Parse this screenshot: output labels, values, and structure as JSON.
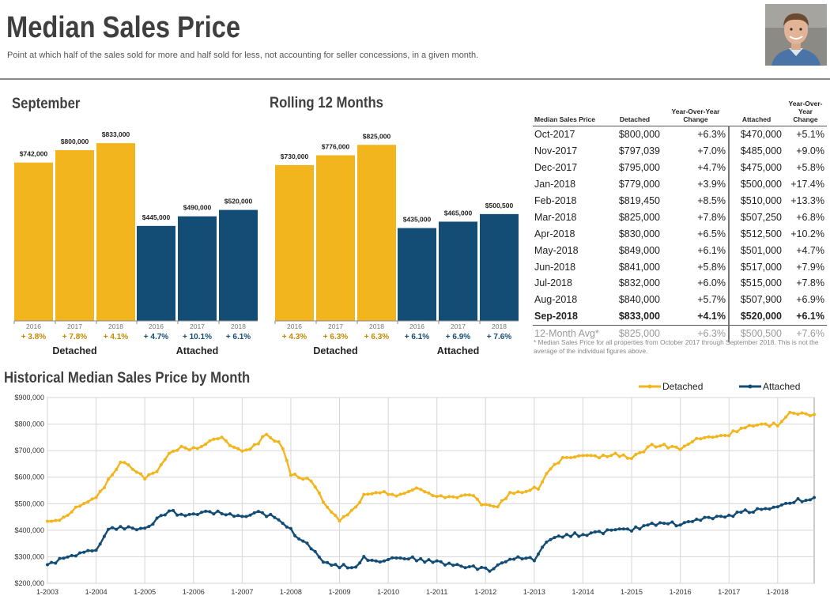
{
  "header": {
    "title": "Median Sales Price",
    "subtitle": "Point at which half of the sales sold for more and half sold for less, not accounting for seller concessions, in a given month."
  },
  "colors": {
    "detached": "#F2B51E",
    "attached": "#134C75",
    "grid": "#d6d6d6"
  },
  "sections": {
    "september": "September",
    "rolling": "Rolling 12 Months",
    "historical": "Historical Median Sales Price by Month"
  },
  "chart_data": [
    {
      "type": "bar",
      "title": "September",
      "groups": [
        "Detached",
        "Attached"
      ],
      "categories": [
        "2016",
        "2017",
        "2018"
      ],
      "series": [
        {
          "name": "Detached",
          "values": [
            742000,
            800000,
            833000
          ],
          "labels": [
            "$742,000",
            "$800,000",
            "$833,000"
          ],
          "changes": [
            "+ 3.8%",
            "+ 7.8%",
            "+ 4.1%"
          ]
        },
        {
          "name": "Attached",
          "values": [
            445000,
            490000,
            520000
          ],
          "labels": [
            "$445,000",
            "$490,000",
            "$520,000"
          ],
          "changes": [
            "+ 4.7%",
            "+ 10.1%",
            "+ 6.1%"
          ]
        }
      ]
    },
    {
      "type": "bar",
      "title": "Rolling 12 Months",
      "groups": [
        "Detached",
        "Attached"
      ],
      "categories": [
        "2016",
        "2017",
        "2018"
      ],
      "series": [
        {
          "name": "Detached",
          "values": [
            730000,
            776000,
            825000
          ],
          "labels": [
            "$730,000",
            "$776,000",
            "$825,000"
          ],
          "changes": [
            "+ 4.3%",
            "+ 6.3%",
            "+ 6.3%"
          ]
        },
        {
          "name": "Attached",
          "values": [
            435000,
            465000,
            500500
          ],
          "labels": [
            "$435,000",
            "$465,000",
            "$500,500"
          ],
          "changes": [
            "+ 6.1%",
            "+ 6.9%",
            "+ 7.6%"
          ]
        }
      ]
    },
    {
      "type": "line",
      "title": "Historical Median Sales Price by Month",
      "legend": [
        "Detached",
        "Attached"
      ],
      "x_tick_labels": [
        "1-2003",
        "1-2004",
        "1-2005",
        "1-2006",
        "1-2007",
        "1-2008",
        "1-2009",
        "1-2010",
        "1-2011",
        "1-2012",
        "1-2013",
        "1-2014",
        "1-2015",
        "1-2016",
        "1-2017",
        "1-2018"
      ],
      "y_tick_labels": [
        "$900,000",
        "$800,000",
        "$700,000",
        "$600,000",
        "$500,000",
        "$400,000",
        "$300,000",
        "$200,000"
      ],
      "ylim": [
        200000,
        900000
      ],
      "x_start": 2003.0,
      "x_end": 2018.75,
      "series": [
        {
          "name": "Detached",
          "anchors": [
            [
              2003.0,
              435000
            ],
            [
              2003.3,
              445000
            ],
            [
              2003.7,
              500000
            ],
            [
              2004.0,
              520000
            ],
            [
              2004.3,
              600000
            ],
            [
              2004.5,
              660000
            ],
            [
              2004.8,
              630000
            ],
            [
              2005.0,
              600000
            ],
            [
              2005.2,
              610000
            ],
            [
              2005.5,
              690000
            ],
            [
              2005.8,
              715000
            ],
            [
              2006.0,
              705000
            ],
            [
              2006.3,
              735000
            ],
            [
              2006.6,
              745000
            ],
            [
              2006.9,
              700000
            ],
            [
              2007.2,
              710000
            ],
            [
              2007.5,
              760000
            ],
            [
              2007.8,
              720000
            ],
            [
              2008.0,
              610000
            ],
            [
              2008.4,
              590000
            ],
            [
              2008.8,
              470000
            ],
            [
              2009.0,
              440000
            ],
            [
              2009.2,
              460000
            ],
            [
              2009.5,
              530000
            ],
            [
              2009.9,
              540000
            ],
            [
              2010.2,
              535000
            ],
            [
              2010.6,
              555000
            ],
            [
              2011.0,
              530000
            ],
            [
              2011.3,
              525000
            ],
            [
              2011.7,
              530000
            ],
            [
              2012.0,
              490000
            ],
            [
              2012.2,
              485000
            ],
            [
              2012.5,
              540000
            ],
            [
              2012.9,
              550000
            ],
            [
              2013.1,
              560000
            ],
            [
              2013.3,
              630000
            ],
            [
              2013.6,
              670000
            ],
            [
              2014.0,
              675000
            ],
            [
              2014.4,
              680000
            ],
            [
              2014.8,
              685000
            ],
            [
              2015.0,
              670000
            ],
            [
              2015.4,
              720000
            ],
            [
              2015.8,
              715000
            ],
            [
              2016.0,
              705000
            ],
            [
              2016.3,
              740000
            ],
            [
              2016.6,
              750000
            ],
            [
              2017.0,
              760000
            ],
            [
              2017.3,
              790000
            ],
            [
              2017.7,
              795000
            ],
            [
              2017.9,
              800000
            ],
            [
              2018.0,
              790000
            ],
            [
              2018.2,
              840000
            ],
            [
              2018.5,
              845000
            ],
            [
              2018.75,
              833000
            ]
          ]
        },
        {
          "name": "Attached",
          "anchors": [
            [
              2003.0,
              270000
            ],
            [
              2003.2,
              285000
            ],
            [
              2003.5,
              305000
            ],
            [
              2003.8,
              315000
            ],
            [
              2004.0,
              330000
            ],
            [
              2004.3,
              410000
            ],
            [
              2004.6,
              410000
            ],
            [
              2004.8,
              400000
            ],
            [
              2005.0,
              405000
            ],
            [
              2005.3,
              450000
            ],
            [
              2005.5,
              475000
            ],
            [
              2005.8,
              450000
            ],
            [
              2006.0,
              455000
            ],
            [
              2006.3,
              470000
            ],
            [
              2006.6,
              465000
            ],
            [
              2006.9,
              455000
            ],
            [
              2007.1,
              450000
            ],
            [
              2007.3,
              465000
            ],
            [
              2007.6,
              455000
            ],
            [
              2007.9,
              420000
            ],
            [
              2008.1,
              380000
            ],
            [
              2008.4,
              340000
            ],
            [
              2008.7,
              280000
            ],
            [
              2009.0,
              265000
            ],
            [
              2009.3,
              260000
            ],
            [
              2009.5,
              295000
            ],
            [
              2009.9,
              285000
            ],
            [
              2010.2,
              300000
            ],
            [
              2010.6,
              290000
            ],
            [
              2011.0,
              280000
            ],
            [
              2011.3,
              270000
            ],
            [
              2011.6,
              265000
            ],
            [
              2011.9,
              255000
            ],
            [
              2012.1,
              250000
            ],
            [
              2012.4,
              285000
            ],
            [
              2012.7,
              295000
            ],
            [
              2013.0,
              290000
            ],
            [
              2013.3,
              370000
            ],
            [
              2013.6,
              380000
            ],
            [
              2014.0,
              385000
            ],
            [
              2014.3,
              390000
            ],
            [
              2014.6,
              400000
            ],
            [
              2015.0,
              400000
            ],
            [
              2015.3,
              420000
            ],
            [
              2015.7,
              430000
            ],
            [
              2016.0,
              420000
            ],
            [
              2016.3,
              440000
            ],
            [
              2016.6,
              445000
            ],
            [
              2016.9,
              450000
            ],
            [
              2017.1,
              460000
            ],
            [
              2017.3,
              470000
            ],
            [
              2017.7,
              480000
            ],
            [
              2018.0,
              490000
            ],
            [
              2018.3,
              510000
            ],
            [
              2018.6,
              515000
            ],
            [
              2018.75,
              520000
            ]
          ]
        }
      ]
    }
  ],
  "table": {
    "headers": [
      "Median Sales Price",
      "Detached",
      "Year-Over-Year\nChange",
      "Attached",
      "Year-Over-Year\nChange"
    ],
    "rows": [
      [
        "Oct-2017",
        "$800,000",
        "+6.3%",
        "$470,000",
        "+5.1%"
      ],
      [
        "Nov-2017",
        "$797,039",
        "+7.0%",
        "$485,000",
        "+9.0%"
      ],
      [
        "Dec-2017",
        "$795,000",
        "+4.7%",
        "$475,000",
        "+5.8%"
      ],
      [
        "Jan-2018",
        "$779,000",
        "+3.9%",
        "$500,000",
        "+17.4%"
      ],
      [
        "Feb-2018",
        "$819,450",
        "+8.5%",
        "$510,000",
        "+13.3%"
      ],
      [
        "Mar-2018",
        "$825,000",
        "+7.8%",
        "$507,250",
        "+6.8%"
      ],
      [
        "Apr-2018",
        "$830,000",
        "+6.5%",
        "$512,500",
        "+10.2%"
      ],
      [
        "May-2018",
        "$849,000",
        "+6.1%",
        "$501,000",
        "+4.7%"
      ],
      [
        "Jun-2018",
        "$841,000",
        "+5.8%",
        "$517,000",
        "+7.9%"
      ],
      [
        "Jul-2018",
        "$832,000",
        "+6.0%",
        "$515,000",
        "+7.8%"
      ],
      [
        "Aug-2018",
        "$840,000",
        "+5.7%",
        "$507,900",
        "+6.9%"
      ],
      [
        "Sep-2018",
        "$833,000",
        "+4.1%",
        "$520,000",
        "+6.1%"
      ]
    ],
    "average": [
      "12-Month Avg*",
      "$825,000",
      "+6.3%",
      "$500,500",
      "+7.6%"
    ],
    "footnote": "* Median Sales Price for all properties from October 2017 through September 2018. This is not the average of the individual figures above."
  }
}
